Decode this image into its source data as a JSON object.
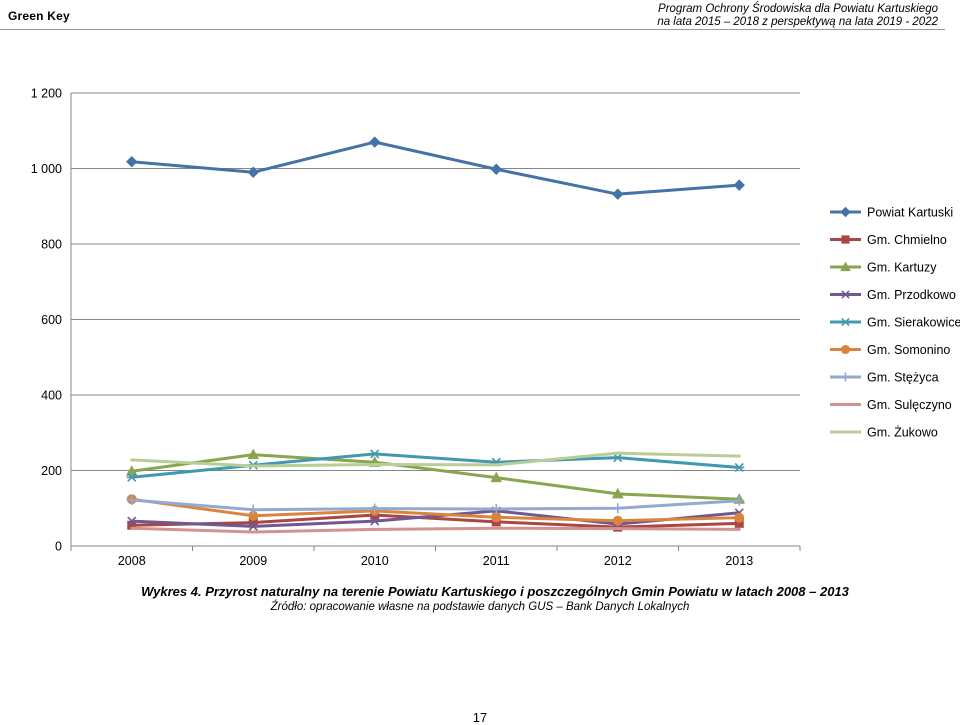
{
  "header": {
    "brand": "Green Key",
    "title_line1": "Program Ochrony Środowiska dla Powiatu Kartuskiego",
    "title_line2": "na lata 2015 – 2018 z perspektywą na lata 2019 - 2022"
  },
  "chart_data": {
    "type": "line",
    "categories": [
      "2008",
      "2009",
      "2010",
      "2011",
      "2012",
      "2013"
    ],
    "ylim": [
      0,
      1200
    ],
    "y_ticks": [
      0,
      200,
      400,
      600,
      800,
      1000,
      1200
    ],
    "y_tick_labels": [
      "0",
      "200",
      "400",
      "600",
      "800",
      "1 000",
      "1 200"
    ],
    "grid": "horizontal",
    "legend_position": "right",
    "series": [
      {
        "name": "Powiat Kartuski",
        "color": "#4572a7",
        "marker": "diamond",
        "values": [
          1018,
          990,
          1070,
          998,
          932,
          956
        ]
      },
      {
        "name": "Gm. Chmielno",
        "color": "#aa4643",
        "marker": "square",
        "values": [
          55,
          62,
          82,
          64,
          50,
          60
        ]
      },
      {
        "name": "Gm. Kartuzy",
        "color": "#89a54e",
        "marker": "triangle",
        "values": [
          198,
          242,
          222,
          181,
          138,
          124
        ]
      },
      {
        "name": "Gm. Przodkowo",
        "color": "#71588f",
        "marker": "x",
        "values": [
          66,
          52,
          66,
          93,
          58,
          88
        ]
      },
      {
        "name": "Gm. Sierakowice",
        "color": "#4198af",
        "marker": "star",
        "values": [
          182,
          214,
          244,
          222,
          234,
          208
        ]
      },
      {
        "name": "Gm. Somonino",
        "color": "#db843d",
        "marker": "circle",
        "values": [
          124,
          80,
          93,
          76,
          67,
          75
        ]
      },
      {
        "name": "Gm. Stężyca",
        "color": "#93a9cf",
        "marker": "plus",
        "values": [
          122,
          96,
          99,
          98,
          100,
          120
        ]
      },
      {
        "name": "Gm. Sulęczyno",
        "color": "#d19392",
        "marker": "none",
        "values": [
          47,
          37,
          44,
          47,
          46,
          44
        ]
      },
      {
        "name": "Gm. Żukowo",
        "color": "#b9cd96",
        "marker": "none",
        "values": [
          228,
          212,
          216,
          215,
          246,
          238
        ]
      }
    ]
  },
  "caption": "Wykres 4. Przyrost naturalny na terenie Powiatu Kartuskiego i poszczególnych Gmin Powiatu w latach 2008 – 2013",
  "source": "Źródło: opracowanie własne na podstawie danych GUS – Bank Danych Lokalnych",
  "page_number": "17"
}
